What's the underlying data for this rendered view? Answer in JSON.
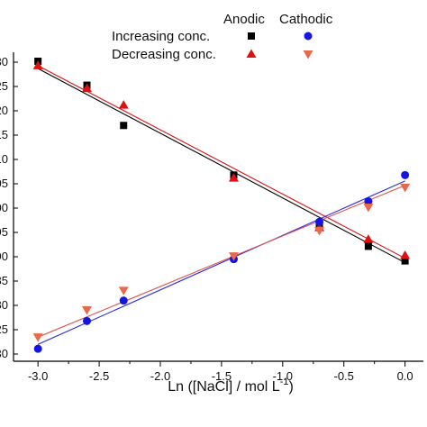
{
  "chart_data": {
    "type": "scatter",
    "xlabel_main": "Ln ([NaCl] / mol L",
    "xlabel_sup": "-1",
    "xlabel_end": ")",
    "ylabel": "",
    "xlim": [
      -3.2,
      0.15
    ],
    "ylim": [
      0,
      100
    ],
    "x_ticks": [
      "-3.0",
      "-2.5",
      "-2.0",
      "-1.5",
      "-1.0",
      "-0.5",
      "0.0"
    ],
    "y_tick_labels_visible": [
      "30",
      "25",
      "20",
      "15",
      "10",
      "05",
      "00",
      "95",
      "90",
      "85",
      "80"
    ],
    "legend": {
      "col_headers": [
        "Anodic",
        "Cathodic"
      ],
      "row_labels": [
        "Increasing conc.",
        "Decreasing conc."
      ]
    },
    "series": [
      {
        "marker": "square",
        "color": "#000000",
        "x": [
          -3.0,
          -2.6,
          -2.3,
          -1.4,
          -0.7,
          -0.3,
          0.0
        ],
        "y": [
          100.0,
          91.8,
          78.0,
          61.0,
          43.3,
          36.6,
          31.6
        ]
      },
      {
        "marker": "triangle-up",
        "color": "#e01010",
        "x": [
          -3.0,
          -2.6,
          -2.3,
          -1.4,
          -0.7,
          -0.3,
          0.0
        ],
        "y": [
          98.5,
          90.7,
          85.0,
          60.0,
          43.0,
          39.0,
          33.5
        ]
      },
      {
        "marker": "circle",
        "color": "#1515e0",
        "x": [
          -3.0,
          -2.6,
          -2.3,
          -1.4,
          -0.7,
          -0.3,
          0.0
        ],
        "y": [
          1.5,
          11.0,
          18.0,
          32.2,
          45.0,
          52.0,
          61.0
        ]
      },
      {
        "marker": "triangle-down",
        "color": "#e86a4a",
        "x": [
          -3.0,
          -2.6,
          -2.3,
          -1.4,
          -0.7,
          -0.3,
          0.0
        ],
        "y": [
          5.5,
          14.8,
          21.5,
          33.3,
          42.0,
          50.0,
          56.8
        ]
      }
    ],
    "fit_lines": [
      {
        "color": "#000000",
        "x": [
          -3.0,
          0.0
        ],
        "y": [
          97.5,
          31.0
        ]
      },
      {
        "color": "#e01010",
        "x": [
          -3.0,
          0.0
        ],
        "y": [
          98.5,
          32.5
        ]
      },
      {
        "color": "#2a2ae0",
        "x": [
          -3.0,
          0.0
        ],
        "y": [
          3.0,
          59.0
        ]
      },
      {
        "color": "#e05050",
        "x": [
          -3.0,
          0.0
        ],
        "y": [
          5.5,
          57.5
        ]
      }
    ]
  }
}
